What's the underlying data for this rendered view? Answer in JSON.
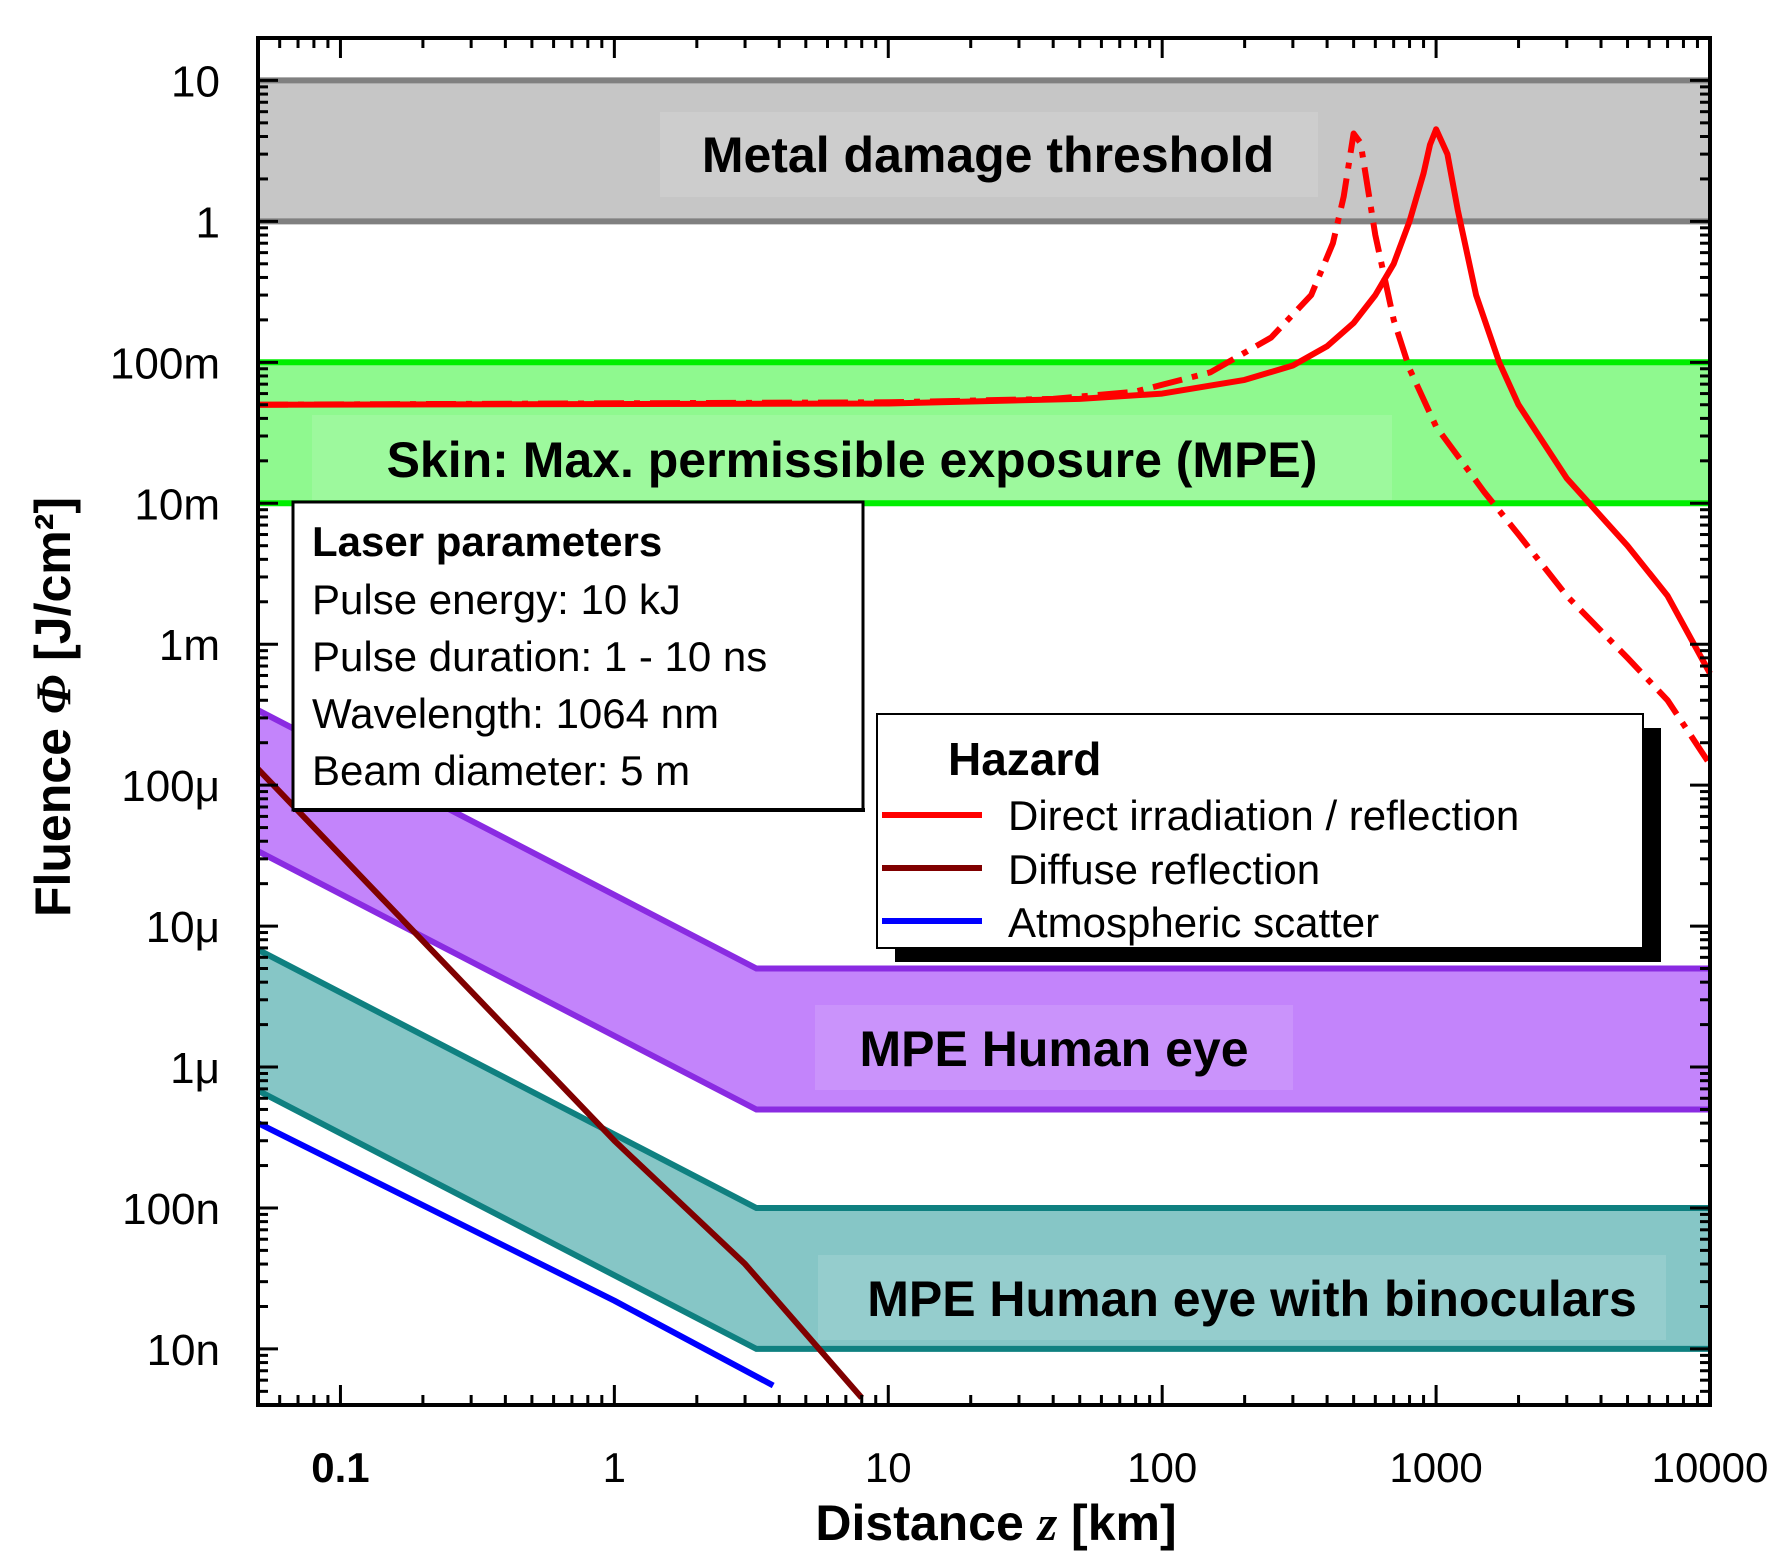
{
  "chart_data": {
    "type": "line",
    "xscale": "log",
    "yscale": "log",
    "xlim": [
      0.05,
      10000
    ],
    "ylim": [
      4e-09,
      20
    ],
    "xlabel": {
      "prefix": "Distance ",
      "var": "z",
      "suffix": " [km]"
    },
    "ylabel": {
      "prefix": "Fluence ",
      "var": "Φ",
      "suffix": " [J/cm²]"
    },
    "x_ticks": [
      {
        "value": 0.1,
        "label": "0.1",
        "bold": true
      },
      {
        "value": 1,
        "label": "1"
      },
      {
        "value": 10,
        "label": "10"
      },
      {
        "value": 100,
        "label": "100"
      },
      {
        "value": 1000,
        "label": "1000"
      },
      {
        "value": 10000,
        "label": "10000"
      }
    ],
    "y_ticks": [
      {
        "value": 10,
        "label": "10"
      },
      {
        "value": 1,
        "label": "1"
      },
      {
        "value": 0.1,
        "label": "100m"
      },
      {
        "value": 0.01,
        "label": "10m"
      },
      {
        "value": 0.001,
        "label": "1m"
      },
      {
        "value": 0.0001,
        "label": "100μ"
      },
      {
        "value": 1e-05,
        "label": "10μ"
      },
      {
        "value": 1e-06,
        "label": "1μ"
      },
      {
        "value": 1e-07,
        "label": "100n"
      },
      {
        "value": 1e-08,
        "label": "10n"
      }
    ],
    "bands": [
      {
        "label": "Metal damage threshold",
        "fill": "#c6c6c6",
        "stroke": "#808080",
        "lower": [
          [
            0.05,
            1
          ],
          [
            10000,
            1
          ]
        ],
        "upper": [
          [
            0.05,
            10
          ],
          [
            10000,
            10
          ]
        ]
      },
      {
        "label": "Skin: Max. permissible exposure (MPE)",
        "fill": "#8ff98f",
        "stroke": "#00ee00",
        "lower": [
          [
            0.05,
            0.01
          ],
          [
            10000,
            0.01
          ]
        ],
        "upper": [
          [
            0.05,
            0.1
          ],
          [
            10000,
            0.1
          ]
        ]
      },
      {
        "label": "MPE Human eye",
        "fill": "#c384fb",
        "stroke": "#8a2be2",
        "lower": [
          [
            0.05,
            3.4e-05
          ],
          [
            3.3,
            5e-07
          ],
          [
            10000,
            5e-07
          ]
        ],
        "upper": [
          [
            0.05,
            0.00034
          ],
          [
            3.3,
            5e-06
          ],
          [
            10000,
            5e-06
          ]
        ]
      },
      {
        "label": "MPE Human eye with binoculars",
        "fill": "#86c6c6",
        "stroke": "#0f8080",
        "lower": [
          [
            0.05,
            6.8e-07
          ],
          [
            3.3,
            1e-08
          ],
          [
            10000,
            1e-08
          ]
        ],
        "upper": [
          [
            0.05,
            6.8e-06
          ],
          [
            3.3,
            1e-07
          ],
          [
            10000,
            1e-07
          ]
        ]
      }
    ],
    "series": [
      {
        "name": "Direct irradiation / reflection",
        "color": "#ff0000",
        "style": "solid",
        "points": [
          [
            0.05,
            0.05
          ],
          [
            10,
            0.051
          ],
          [
            50,
            0.055
          ],
          [
            100,
            0.06
          ],
          [
            200,
            0.075
          ],
          [
            300,
            0.095
          ],
          [
            400,
            0.13
          ],
          [
            500,
            0.19
          ],
          [
            600,
            0.3
          ],
          [
            700,
            0.5
          ],
          [
            800,
            1.0
          ],
          [
            900,
            2.2
          ],
          [
            950,
            3.5
          ],
          [
            1000,
            4.5
          ],
          [
            1100,
            3.0
          ],
          [
            1200,
            1.2
          ],
          [
            1400,
            0.3
          ],
          [
            1700,
            0.1
          ],
          [
            2000,
            0.05
          ],
          [
            3000,
            0.015
          ],
          [
            5000,
            0.005
          ],
          [
            7000,
            0.0022
          ],
          [
            10000,
            0.00062
          ]
        ]
      },
      {
        "name": "Direct irradiation / reflection (dash-dot)",
        "color": "#ff0000",
        "style": "dashdot",
        "points": [
          [
            0.05,
            0.05
          ],
          [
            10,
            0.052
          ],
          [
            40,
            0.055
          ],
          [
            80,
            0.062
          ],
          [
            150,
            0.085
          ],
          [
            250,
            0.15
          ],
          [
            350,
            0.3
          ],
          [
            420,
            0.7
          ],
          [
            460,
            1.5
          ],
          [
            500,
            4.2
          ],
          [
            530,
            3.6
          ],
          [
            600,
            0.8
          ],
          [
            700,
            0.2
          ],
          [
            800,
            0.09
          ],
          [
            1000,
            0.035
          ],
          [
            1500,
            0.012
          ],
          [
            2000,
            0.006
          ],
          [
            3000,
            0.0022
          ],
          [
            5000,
            0.0008
          ],
          [
            7000,
            0.0004
          ],
          [
            10000,
            0.00014
          ]
        ]
      },
      {
        "name": "Diffuse reflection",
        "color": "#800000",
        "style": "solid",
        "points": [
          [
            0.05,
            0.00013
          ],
          [
            1,
            3e-07
          ],
          [
            3,
            4e-08
          ],
          [
            8,
            4.5e-09
          ]
        ]
      },
      {
        "name": "Atmospheric scatter",
        "color": "#0000ff",
        "style": "solid",
        "points": [
          [
            0.05,
            4e-07
          ],
          [
            1,
            2.2e-08
          ],
          [
            3.8,
            5.5e-09
          ]
        ]
      }
    ],
    "legend": {
      "title": "Hazard",
      "placement": "center-right",
      "items": [
        {
          "label": "Direct irradiation / reflection",
          "color": "#ff0000"
        },
        {
          "label": "Diffuse reflection",
          "color": "#800000"
        },
        {
          "label": "Atmospheric scatter",
          "color": "#0000ff"
        }
      ]
    },
    "annotation": {
      "title": "Laser parameters",
      "lines": [
        "Pulse energy: 10 kJ",
        "Pulse duration: 1 - 10 ns",
        "Wavelength: 1064 nm",
        "Beam diameter: 5 m"
      ]
    }
  }
}
